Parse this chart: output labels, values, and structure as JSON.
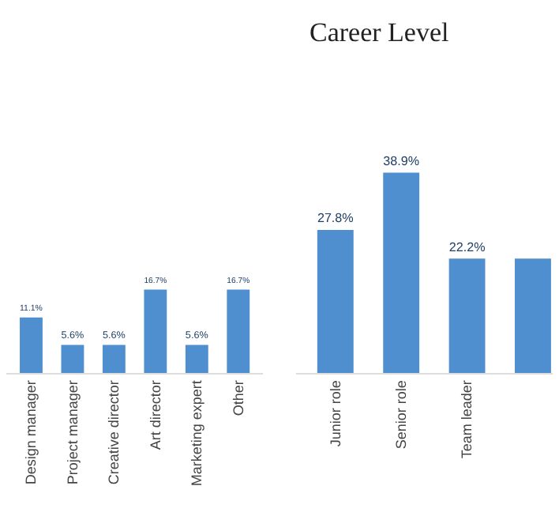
{
  "chart_data": [
    {
      "type": "bar",
      "categories": [
        "Design manager",
        "Project manager",
        "Creative director",
        "Art director",
        "Marketing expert",
        "Other"
      ],
      "values": [
        11.1,
        5.6,
        5.6,
        16.7,
        5.6,
        16.7
      ],
      "value_labels": [
        "11.1%",
        "5.6%",
        "5.6%",
        "16.7%",
        "5.6%",
        "16.7%"
      ],
      "color": "#4f8fcf"
    },
    {
      "type": "bar",
      "title": "Career Level",
      "categories": [
        "Junior role",
        "Senior role",
        "Team leader",
        null
      ],
      "values": [
        27.8,
        38.9,
        22.2,
        22.2
      ],
      "value_labels": [
        "27.8%",
        "38.9%",
        "22.2%",
        null
      ],
      "color": "#4f8fcf"
    }
  ]
}
